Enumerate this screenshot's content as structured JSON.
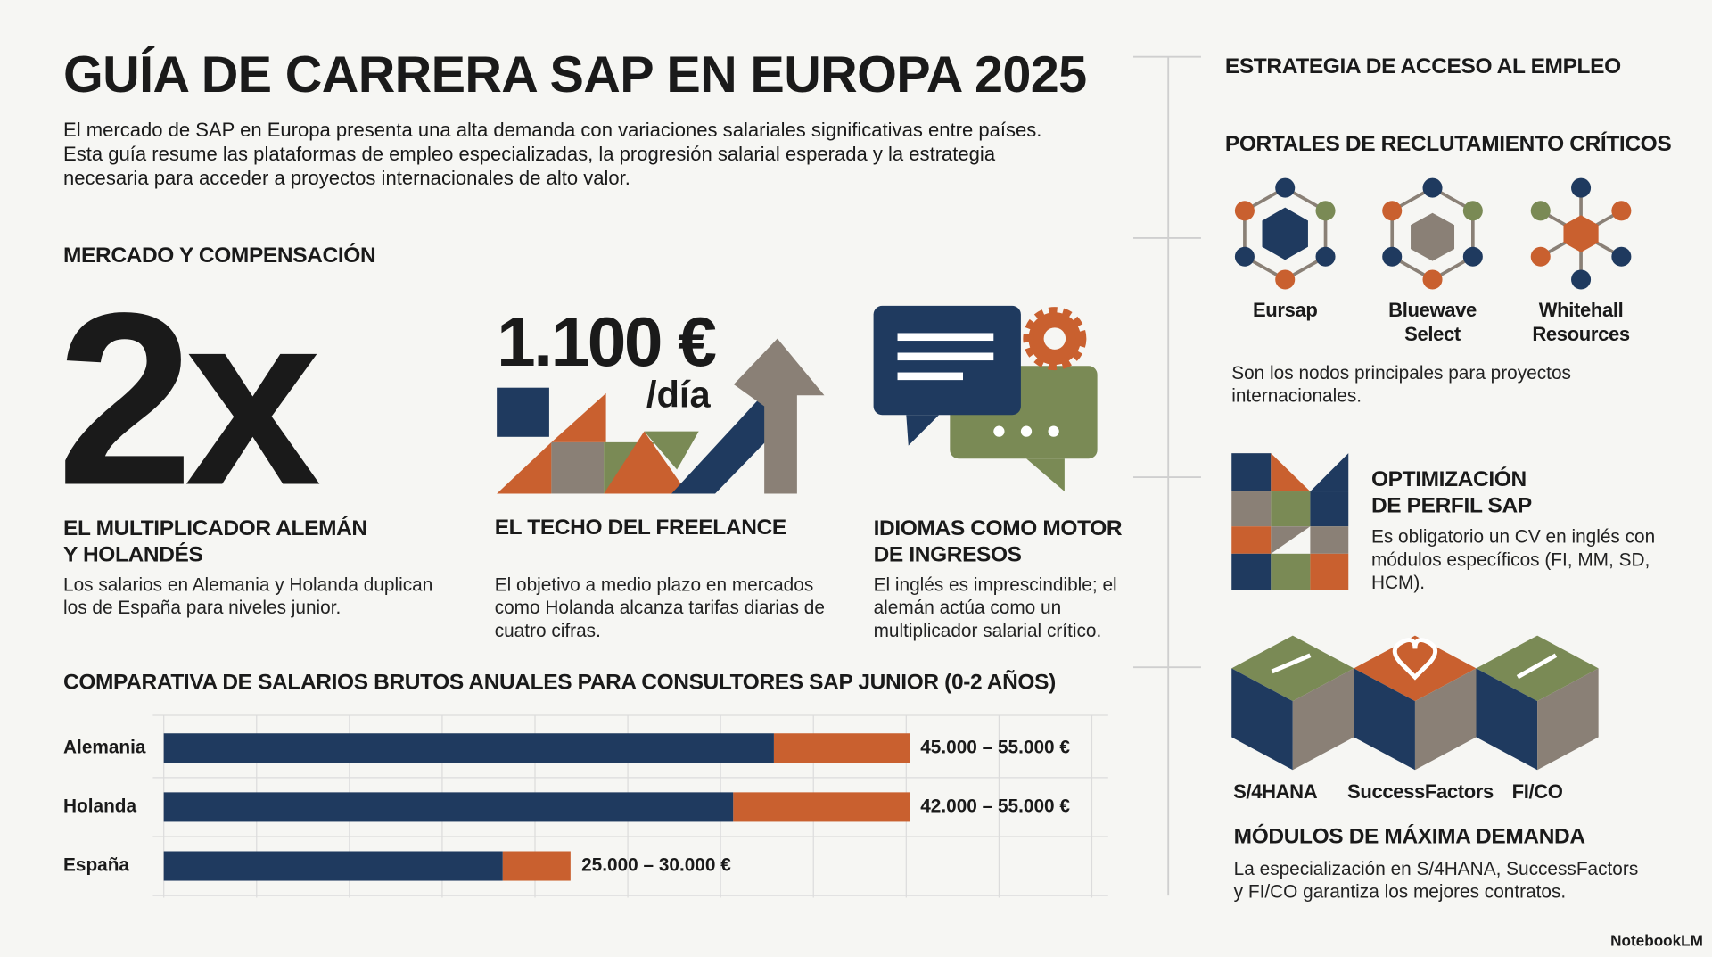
{
  "header": {
    "title": "GUÍA DE CARRERA SAP EN EUROPA 2025",
    "intro": "El mercado de SAP en Europa presenta una alta demanda con variaciones salariales significativas entre países. Esta guía resume las plataformas de empleo especializadas, la progresión salarial esperada y la estrategia necesaria para acceder a proyectos internacionales de alto valor."
  },
  "market": {
    "heading": "MERCADO Y COMPENSACIÓN",
    "cards": [
      {
        "figure": "2x",
        "title": "EL MULTIPLICADOR ALEMÁN Y HOLANDÉS",
        "body": "Los salarios en Alemania y Holanda duplican los de España para niveles junior."
      },
      {
        "figure": "1.100 €",
        "figure_unit": "/día",
        "title": "EL TECHO DEL FREELANCE",
        "body": "El objetivo a medio plazo en mercados como Holanda alcanza tarifas diarias de cuatro cifras."
      },
      {
        "title": "IDIOMAS COMO MOTOR DE INGRESOS",
        "body": "El inglés es imprescindible; el alemán actúa como un multiplicador salarial crítico."
      }
    ]
  },
  "chart_data": {
    "type": "bar",
    "title": "COMPARATIVA DE SALARIOS BRUTOS ANUALES PARA CONSULTORES SAP JUNIOR (0-2 AÑOS)",
    "categories": [
      "Alemania",
      "Holanda",
      "España"
    ],
    "series": [
      {
        "color": "#1f3a5f",
        "values": [
          45000,
          42000,
          25000
        ]
      },
      {
        "color": "#c9602f",
        "values": [
          55000,
          55000,
          30000
        ]
      }
    ],
    "value_labels": [
      "45.000 – 55.000 €",
      "42.000 – 55.000 €",
      "25.000 – 30.000 €"
    ],
    "xlim": [
      0,
      55000
    ]
  },
  "strategy": {
    "heading": "ESTRATEGIA DE ACCESO AL EMPLEO",
    "portals": {
      "heading": "PORTALES DE RECLUTAMIENTO CRÍTICOS",
      "items": [
        "Eursap",
        "Bluewave Select",
        "Whitehall Resources"
      ],
      "note": "Son los nodos principales para proyectos internacionales."
    },
    "profile": {
      "title": "OPTIMIZACIÓN DE PERFIL SAP",
      "body": "Es obligatorio un CV en inglés con módulos específicos (FI, MM, SD, HCM)."
    },
    "modules": {
      "items": [
        "S/4HANA",
        "SuccessFactors",
        "FI/CO"
      ],
      "title": "MÓDULOS DE MÁXIMA DEMANDA",
      "body": "La especialización en S/4HANA, SuccessFactors y FI/CO garantiza los mejores contratos."
    }
  },
  "footer": {
    "brand": "NotebookLM"
  }
}
